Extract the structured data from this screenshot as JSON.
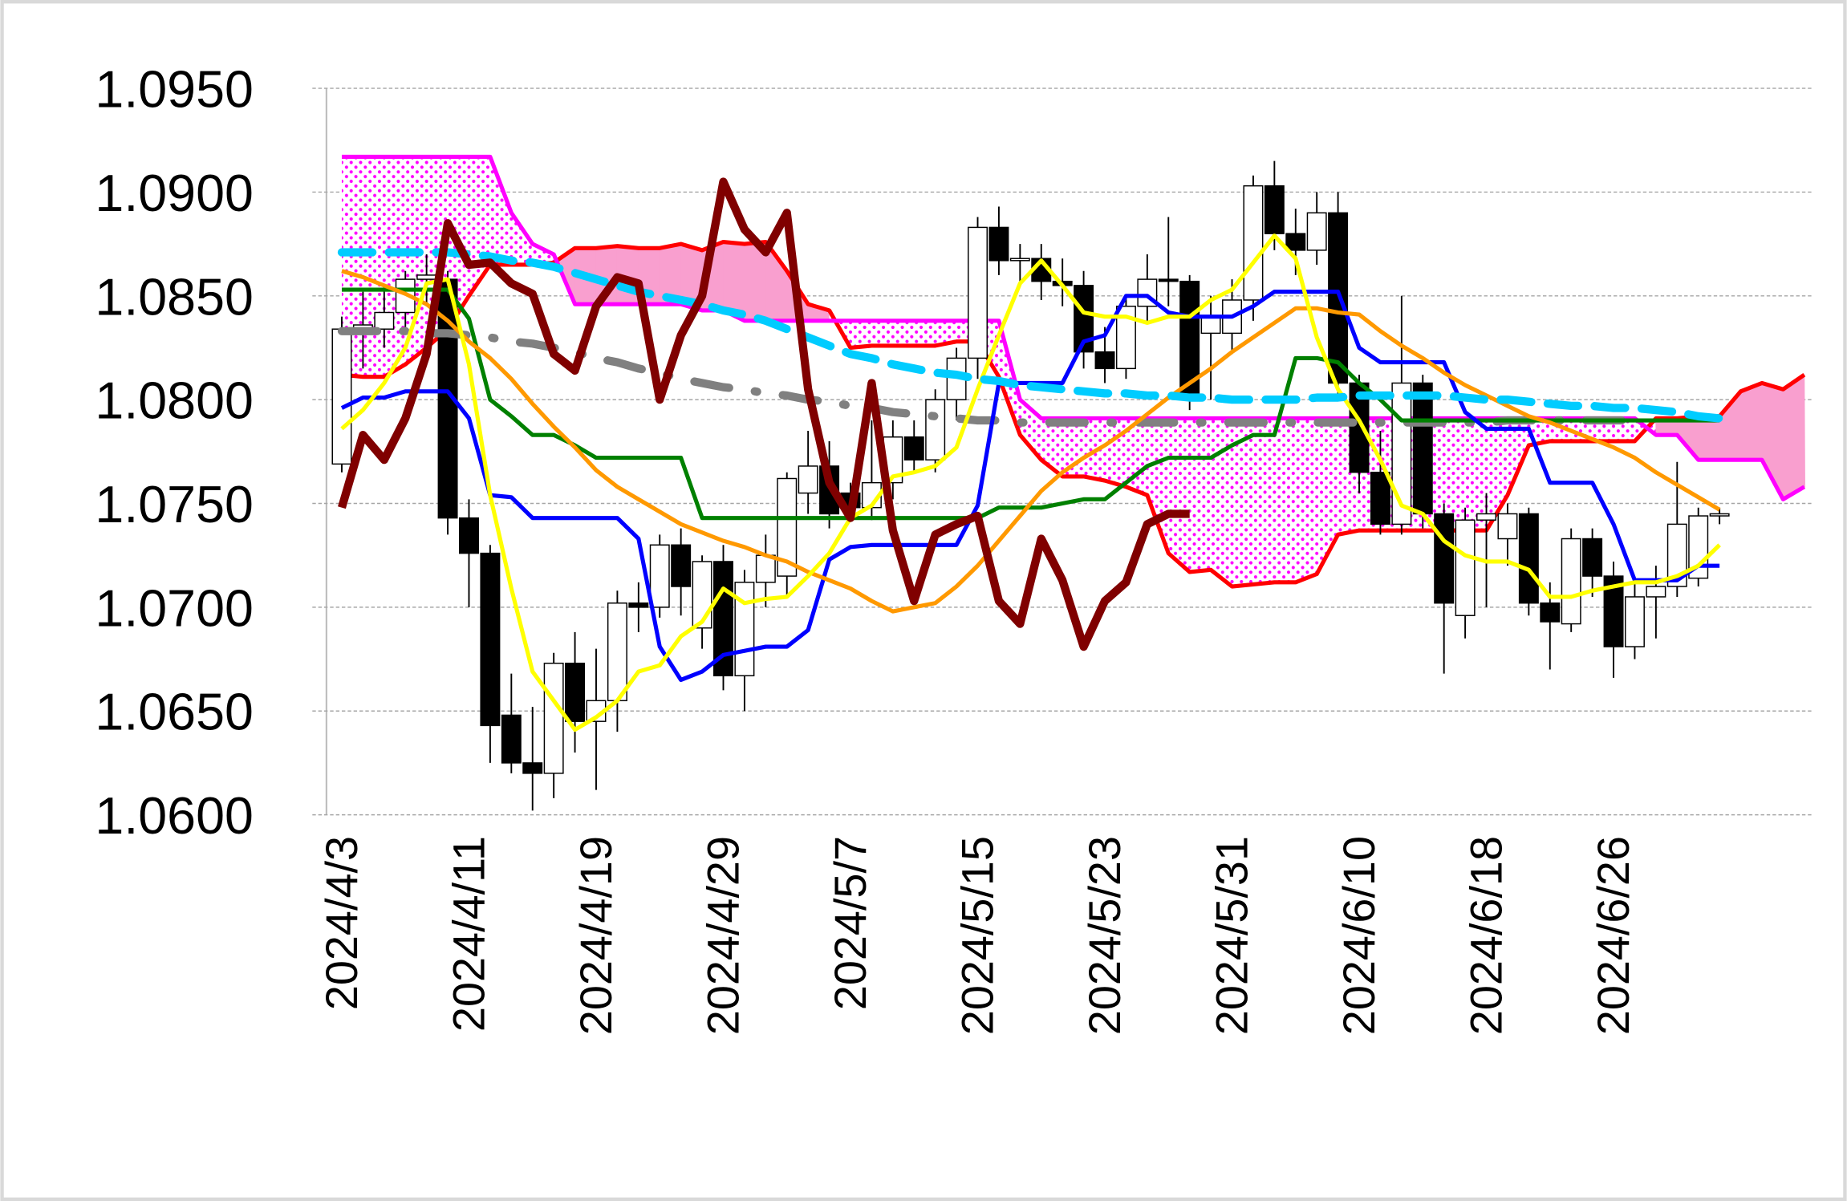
{
  "chart_data": {
    "type": "candlestick",
    "categories": [
      "2024/4/3",
      null,
      null,
      null,
      null,
      null,
      "2024/4/11",
      null,
      null,
      null,
      null,
      null,
      "2024/4/19",
      null,
      null,
      null,
      null,
      null,
      "2024/4/29",
      null,
      null,
      null,
      null,
      null,
      "2024/5/7",
      null,
      null,
      null,
      null,
      null,
      "2024/5/15",
      null,
      null,
      null,
      null,
      null,
      "2024/5/23",
      null,
      null,
      null,
      null,
      null,
      "2024/5/31",
      null,
      null,
      null,
      null,
      null,
      "2024/6/10",
      null,
      null,
      null,
      null,
      null,
      "2024/6/18",
      null,
      null,
      null,
      null,
      null,
      "2024/6/26",
      null,
      null,
      null,
      null,
      null,
      null,
      null,
      null,
      null
    ],
    "open": [
      1.0769,
      1.0834,
      1.0834,
      1.0842,
      1.0858,
      1.0858,
      1.0743,
      1.0726,
      1.0648,
      1.0625,
      1.062,
      1.0673,
      1.0645,
      1.0655,
      1.0702,
      1.07,
      1.073,
      1.069,
      1.0722,
      1.0667,
      1.0712,
      1.0715,
      1.0755,
      1.0768,
      1.0755,
      1.0748,
      1.076,
      1.0782,
      1.0771,
      1.08,
      1.082,
      1.0883,
      1.0867,
      1.0868,
      1.0857,
      1.0855,
      1.0823,
      1.0815,
      1.0845,
      1.0858,
      1.0857,
      1.0832,
      1.0832,
      1.0848,
      1.0903,
      1.088,
      1.0872,
      1.089,
      1.0808,
      1.0765,
      1.074,
      1.0808,
      1.0745,
      1.0696,
      1.0742,
      1.0733,
      1.0745,
      1.0702,
      1.0692,
      1.0733,
      1.0715,
      1.0681,
      1.0705,
      1.071,
      1.0714,
      1.0744,
      null,
      null,
      null,
      null
    ],
    "high": [
      1.084,
      1.0852,
      1.0855,
      1.0862,
      1.087,
      1.0862,
      1.0752,
      1.073,
      1.0668,
      1.0652,
      1.0678,
      1.0688,
      1.068,
      1.0708,
      1.0712,
      1.0735,
      1.0738,
      1.0725,
      1.073,
      1.0718,
      1.0735,
      1.0765,
      1.0785,
      1.078,
      1.076,
      1.079,
      1.079,
      1.079,
      1.0805,
      1.0825,
      1.0888,
      1.0893,
      1.0875,
      1.0875,
      1.0868,
      1.0862,
      1.0835,
      1.085,
      1.087,
      1.0888,
      1.086,
      1.085,
      1.0858,
      1.0908,
      1.0915,
      1.0892,
      1.09,
      1.09,
      1.0812,
      1.0785,
      1.085,
      1.0812,
      1.075,
      1.0748,
      1.0755,
      1.075,
      1.0748,
      1.0712,
      1.0738,
      1.0738,
      1.0722,
      1.0712,
      1.072,
      1.077,
      1.0748,
      1.0748,
      null,
      null,
      null,
      null
    ],
    "low": [
      1.0765,
      1.0815,
      1.0825,
      1.0835,
      1.0845,
      1.0735,
      1.07,
      1.0625,
      1.062,
      1.0602,
      1.0608,
      1.063,
      1.0612,
      1.064,
      1.0688,
      1.0695,
      1.0696,
      1.068,
      1.066,
      1.065,
      1.07,
      1.0705,
      1.0745,
      1.0738,
      1.0742,
      1.0742,
      1.0752,
      1.0765,
      1.0765,
      1.079,
      1.081,
      1.086,
      1.0855,
      1.0848,
      1.0845,
      1.0815,
      1.0808,
      1.081,
      1.0838,
      1.0845,
      1.0795,
      1.08,
      1.0822,
      1.0838,
      1.0872,
      1.086,
      1.0865,
      1.08,
      1.0755,
      1.0735,
      1.0735,
      1.0738,
      1.0668,
      1.0685,
      1.07,
      1.072,
      1.0696,
      1.067,
      1.0688,
      1.0705,
      1.0666,
      1.0675,
      1.0685,
      1.0705,
      1.071,
      1.074,
      null,
      null,
      null,
      null
    ],
    "close": [
      1.0834,
      1.0836,
      1.0842,
      1.0858,
      1.086,
      1.0743,
      1.0726,
      1.0643,
      1.0625,
      1.062,
      1.0673,
      1.0645,
      1.0655,
      1.0702,
      1.07,
      1.073,
      1.071,
      1.0722,
      1.0667,
      1.0712,
      1.0725,
      1.0762,
      1.0768,
      1.0745,
      1.0748,
      1.076,
      1.0782,
      1.0771,
      1.08,
      1.082,
      1.0883,
      1.0867,
      1.0868,
      1.0857,
      1.0855,
      1.0823,
      1.0815,
      1.0845,
      1.0858,
      1.0857,
      1.08,
      1.084,
      1.0848,
      1.0903,
      1.088,
      1.0872,
      1.089,
      1.0808,
      1.0765,
      1.074,
      1.0808,
      1.0745,
      1.0702,
      1.0742,
      1.0745,
      1.0745,
      1.0702,
      1.0693,
      1.0733,
      1.0715,
      1.0681,
      1.0705,
      1.071,
      1.074,
      1.0744,
      1.0745,
      null,
      null,
      null,
      null
    ],
    "up_color": "#ffffff",
    "down_color": "#000000",
    "cloud_color": "#f99fcf",
    "cloud_pattern_color": "#ff00ff",
    "lines": [
      {
        "role": "span_a",
        "color": "#ff0000",
        "width": 3.5,
        "dash": "solid",
        "values": [
          1.0812,
          1.0811,
          1.0811,
          1.0817,
          1.0825,
          1.0834,
          1.085,
          1.0865,
          1.0865,
          1.0865,
          1.0866,
          1.0873,
          1.0873,
          1.0874,
          1.0873,
          1.0873,
          1.0875,
          1.0872,
          1.0876,
          1.0875,
          1.0876,
          1.0862,
          1.0846,
          1.0843,
          1.0825,
          1.0826,
          1.0826,
          1.0826,
          1.0826,
          1.0828,
          1.0828,
          1.0811,
          1.0783,
          1.0771,
          1.0763,
          1.0763,
          1.0761,
          1.0758,
          1.0754,
          1.0726,
          1.0717,
          1.0718,
          1.071,
          1.0711,
          1.0712,
          1.0712,
          1.0716,
          1.0735,
          1.0737,
          1.0737,
          1.0737,
          1.0737,
          1.0737,
          1.0737,
          1.0737,
          1.0754,
          1.0778,
          1.078,
          1.078,
          1.078,
          1.078,
          1.078,
          1.0791,
          1.0791,
          1.0792,
          1.0792,
          1.0804,
          1.0808,
          1.0805,
          1.0812
        ]
      },
      {
        "role": "span_b",
        "color": "#ff00ff",
        "width": 3.5,
        "dash": "solid",
        "values": [
          1.0917,
          1.0917,
          1.0917,
          1.0917,
          1.0917,
          1.0917,
          1.0917,
          1.0917,
          1.089,
          1.0875,
          1.087,
          1.0846,
          1.0846,
          1.0846,
          1.0846,
          1.0846,
          1.0846,
          1.0843,
          1.0843,
          1.0838,
          1.0838,
          1.0838,
          1.0838,
          1.0838,
          1.0838,
          1.0838,
          1.0838,
          1.0838,
          1.0838,
          1.0838,
          1.0838,
          1.0838,
          1.08,
          1.0791,
          1.0791,
          1.0791,
          1.0791,
          1.0791,
          1.0791,
          1.0791,
          1.0791,
          1.0791,
          1.0791,
          1.0791,
          1.0791,
          1.0791,
          1.0791,
          1.0791,
          1.0791,
          1.0791,
          1.0791,
          1.0791,
          1.0791,
          1.0791,
          1.0791,
          1.0791,
          1.0791,
          1.0791,
          1.0791,
          1.0791,
          1.0791,
          1.0791,
          1.0783,
          1.0783,
          1.0771,
          1.0771,
          1.0771,
          1.0771,
          1.0752,
          1.0758
        ]
      },
      {
        "role": "line",
        "color": "#808080",
        "width": 7,
        "dash": "dashdot",
        "values": [
          1.0833,
          1.0833,
          1.0833,
          1.0833,
          1.0832,
          1.0832,
          1.0831,
          1.083,
          1.0828,
          1.0827,
          1.0825,
          1.0823,
          1.082,
          1.0818,
          1.0815,
          1.0813,
          1.081,
          1.0808,
          1.0806,
          1.0805,
          1.0803,
          1.0802,
          1.08,
          1.0799,
          1.0797,
          1.0796,
          1.0794,
          1.0793,
          1.0792,
          1.0791,
          1.079,
          1.079,
          1.0789,
          1.0789,
          1.0789,
          1.0789,
          1.0789,
          1.0789,
          1.0789,
          1.0789,
          1.0789,
          1.0789,
          1.0789,
          1.0789,
          1.0789,
          1.0789,
          1.0789,
          1.0789,
          1.0789,
          1.0789,
          1.0789,
          1.0789,
          1.0789,
          1.0789,
          1.0789,
          1.079,
          1.079,
          1.079,
          1.079,
          1.079,
          1.079,
          1.079,
          null,
          null,
          null,
          null,
          null,
          null,
          null,
          null
        ]
      },
      {
        "role": "line",
        "color": "#008000",
        "width": 3.5,
        "dash": "solid",
        "values": [
          1.0853,
          1.0853,
          1.0853,
          1.0853,
          1.0853,
          1.0853,
          1.0839,
          1.08,
          1.0792,
          1.0783,
          1.0783,
          1.0778,
          1.0772,
          1.0772,
          1.0772,
          1.0772,
          1.0772,
          1.0743,
          1.0743,
          1.0743,
          1.0743,
          1.0743,
          1.0743,
          1.0743,
          1.0743,
          1.0743,
          1.0743,
          1.0743,
          1.0743,
          1.0743,
          1.0743,
          1.0748,
          1.0748,
          1.0748,
          1.075,
          1.0752,
          1.0752,
          1.076,
          1.0768,
          1.0772,
          1.0772,
          1.0772,
          1.0778,
          1.0783,
          1.0783,
          1.082,
          1.082,
          1.0818,
          1.0808,
          1.08,
          1.079,
          1.079,
          1.079,
          1.079,
          1.079,
          1.079,
          1.079,
          1.079,
          1.079,
          1.079,
          1.079,
          1.079,
          1.079,
          1.079,
          1.079,
          1.079,
          null,
          null,
          null,
          null
        ]
      },
      {
        "role": "line",
        "color": "#0000ff",
        "width": 3.5,
        "dash": "solid",
        "values": [
          1.0796,
          1.0801,
          1.0801,
          1.0804,
          1.0804,
          1.0804,
          1.0791,
          1.0754,
          1.0753,
          1.0743,
          1.0743,
          1.0743,
          1.0743,
          1.0743,
          1.0733,
          1.0681,
          1.0665,
          1.0669,
          1.0677,
          1.0679,
          1.0681,
          1.0681,
          1.0689,
          1.0723,
          1.0729,
          1.073,
          1.073,
          1.073,
          1.073,
          1.073,
          1.0749,
          1.0808,
          1.0808,
          1.0808,
          1.0808,
          1.0828,
          1.0831,
          1.085,
          1.085,
          1.0842,
          1.084,
          1.084,
          1.084,
          1.0845,
          1.0852,
          1.0852,
          1.0852,
          1.0852,
          1.0825,
          1.0818,
          1.0818,
          1.0818,
          1.0818,
          1.0794,
          1.0786,
          1.0786,
          1.0786,
          1.076,
          1.076,
          1.076,
          1.074,
          1.0713,
          1.0713,
          1.0713,
          1.072,
          1.072,
          null,
          null,
          null,
          null
        ]
      },
      {
        "role": "line",
        "color": "#ff9900",
        "width": 3.5,
        "dash": "solid",
        "values": [
          1.0862,
          1.0859,
          1.0855,
          1.0851,
          1.0846,
          1.0838,
          1.0828,
          1.082,
          1.081,
          1.0798,
          1.0787,
          1.0777,
          1.0766,
          1.0758,
          1.0752,
          1.0746,
          1.074,
          1.0736,
          1.0732,
          1.0729,
          1.0725,
          1.0722,
          1.0717,
          1.0713,
          1.0709,
          1.0703,
          1.0698,
          1.07,
          1.0702,
          1.071,
          1.072,
          1.0732,
          1.0744,
          1.0756,
          1.0765,
          1.0772,
          1.0778,
          1.0785,
          1.0793,
          1.0801,
          1.0808,
          1.0815,
          1.0823,
          1.083,
          1.0837,
          1.0844,
          1.0844,
          1.0842,
          1.0841,
          1.0833,
          1.0826,
          1.082,
          1.0813,
          1.0807,
          1.0802,
          1.0797,
          1.0792,
          1.0789,
          1.0785,
          1.0781,
          1.0777,
          1.0772,
          1.0765,
          1.0759,
          1.0753,
          1.0747,
          null,
          null,
          null,
          null
        ]
      },
      {
        "role": "line",
        "color": "#ffff00",
        "width": 3.5,
        "dash": "solid",
        "values": [
          1.0786,
          1.0795,
          1.0808,
          1.0825,
          1.0856,
          1.0858,
          1.0817,
          1.0754,
          1.0709,
          1.0669,
          1.0655,
          1.0641,
          1.0647,
          1.0655,
          1.0669,
          1.0672,
          1.0686,
          1.0693,
          1.0709,
          1.0702,
          1.0704,
          1.0705,
          1.0715,
          1.0726,
          1.0743,
          1.0749,
          1.0763,
          1.0765,
          1.0768,
          1.0777,
          1.0805,
          1.0831,
          1.0856,
          1.0867,
          1.0855,
          1.0842,
          1.084,
          1.084,
          1.0837,
          1.084,
          1.084,
          1.0848,
          1.0853,
          1.0866,
          1.0879,
          1.0868,
          1.083,
          1.0805,
          1.079,
          1.0771,
          1.0749,
          1.0745,
          1.0732,
          1.0725,
          1.0722,
          1.0722,
          1.0718,
          1.0705,
          1.0705,
          1.0708,
          1.071,
          1.0712,
          1.0712,
          1.0715,
          1.072,
          1.073,
          null,
          null,
          null,
          null
        ]
      },
      {
        "role": "line",
        "color": "#00ccff",
        "width": 7,
        "dash": "dashed",
        "values": [
          1.0871,
          1.0871,
          1.0871,
          1.0871,
          1.0871,
          1.0871,
          1.087,
          1.0869,
          1.0867,
          1.0866,
          1.0864,
          1.0861,
          1.0858,
          1.0855,
          1.0852,
          1.085,
          1.0848,
          1.0846,
          1.0843,
          1.0841,
          1.0838,
          1.0834,
          1.083,
          1.0826,
          1.0822,
          1.082,
          1.0817,
          1.0815,
          1.0813,
          1.0812,
          1.081,
          1.0809,
          1.0807,
          1.0806,
          1.0805,
          1.0804,
          1.0803,
          1.0803,
          1.0802,
          1.0802,
          1.0801,
          1.0801,
          1.08,
          1.08,
          1.08,
          1.08,
          1.0801,
          1.0801,
          1.0802,
          1.0802,
          1.0802,
          1.0802,
          1.0802,
          1.0801,
          1.08,
          1.08,
          1.0799,
          1.0798,
          1.0797,
          1.0797,
          1.0796,
          1.0796,
          1.0795,
          1.0794,
          1.0792,
          1.0791,
          null,
          null,
          null,
          null
        ]
      },
      {
        "role": "line",
        "color": "#800000",
        "width": 7,
        "dash": "solid",
        "values": [
          1.0748,
          1.0783,
          1.0771,
          1.0791,
          1.0822,
          1.0885,
          1.0865,
          1.0866,
          1.0856,
          1.0851,
          1.0822,
          1.0814,
          1.0845,
          1.0859,
          1.0856,
          1.08,
          1.0831,
          1.085,
          1.0905,
          1.0882,
          1.0871,
          1.089,
          1.0805,
          1.076,
          1.0743,
          1.0808,
          1.0737,
          1.0703,
          1.0735,
          1.074,
          1.0744,
          1.0703,
          1.0692,
          1.0733,
          1.0713,
          1.0681,
          1.0703,
          1.0712,
          1.074,
          1.0745,
          1.0745,
          null,
          null,
          null,
          null,
          null,
          null,
          null,
          null,
          null,
          null,
          null,
          null,
          null,
          null,
          null,
          null,
          null,
          null,
          null,
          null,
          null,
          null,
          null,
          null,
          null,
          null,
          null,
          null,
          null
        ]
      }
    ],
    "ylim": [
      1.06,
      1.095
    ],
    "yticks": [
      {
        "value": 1.06,
        "label": "1.0600"
      },
      {
        "value": 1.065,
        "label": "1.0650"
      },
      {
        "value": 1.07,
        "label": "1.0700"
      },
      {
        "value": 1.075,
        "label": "1.0750"
      },
      {
        "value": 1.08,
        "label": "1.0800"
      },
      {
        "value": 1.085,
        "label": "1.0850"
      },
      {
        "value": 1.09,
        "label": "1.0900"
      },
      {
        "value": 1.095,
        "label": "1.0950"
      }
    ],
    "grid": true
  }
}
